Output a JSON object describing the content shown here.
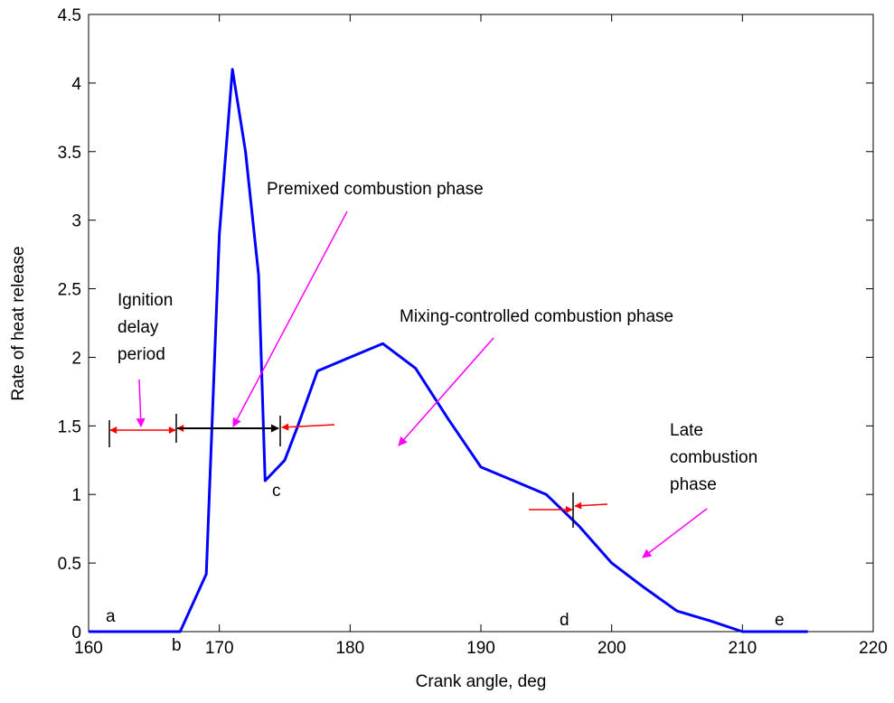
{
  "chart_data": {
    "type": "line",
    "xlabel": "Crank angle, deg",
    "ylabel": "Rate of heat release",
    "xlim": [
      160,
      220
    ],
    "ylim": [
      0,
      4.5
    ],
    "xticks": [
      "160",
      "170",
      "180",
      "190",
      "200",
      "210",
      "220"
    ],
    "yticks": [
      "0",
      "0.5",
      "1",
      "1.5",
      "2",
      "2.5",
      "3",
      "3.5",
      "4",
      "4.5"
    ],
    "grid": false,
    "series": [
      {
        "color": "#0000ff",
        "x": [
          160,
          167,
          169,
          170,
          171,
          172,
          173,
          173.5,
          174,
          175,
          176,
          177.5,
          180,
          182.5,
          185,
          187.5,
          190,
          192.5,
          195,
          197.5,
          200,
          202.5,
          205,
          207.5,
          210,
          215
        ],
        "y": [
          0,
          0,
          0.42,
          2.9,
          4.1,
          3.5,
          2.6,
          1.1,
          1.15,
          1.25,
          1.5,
          1.9,
          2.0,
          2.1,
          1.92,
          1.55,
          1.2,
          1.1,
          1.0,
          0.77,
          0.5,
          0.32,
          0.15,
          0.08,
          0.0,
          0.0
        ]
      }
    ],
    "annotations": {
      "premixed": "Premixed combustion phase",
      "mixing": "Mixing-controlled combustion phase",
      "ignition_l1": "Ignition",
      "ignition_l2": "delay",
      "ignition_l3": "period",
      "late_l1": "Late",
      "late_l2": "combustion",
      "late_l3": "phase",
      "point_a": "a",
      "point_b": "b",
      "point_c": "c",
      "point_d": "d",
      "point_e": "e"
    },
    "colors": {
      "curve": "#0000ff",
      "pointer_arrow": "#ff00ff",
      "phase_arrow": "#ff0000",
      "span_arrow": "#000000"
    }
  }
}
